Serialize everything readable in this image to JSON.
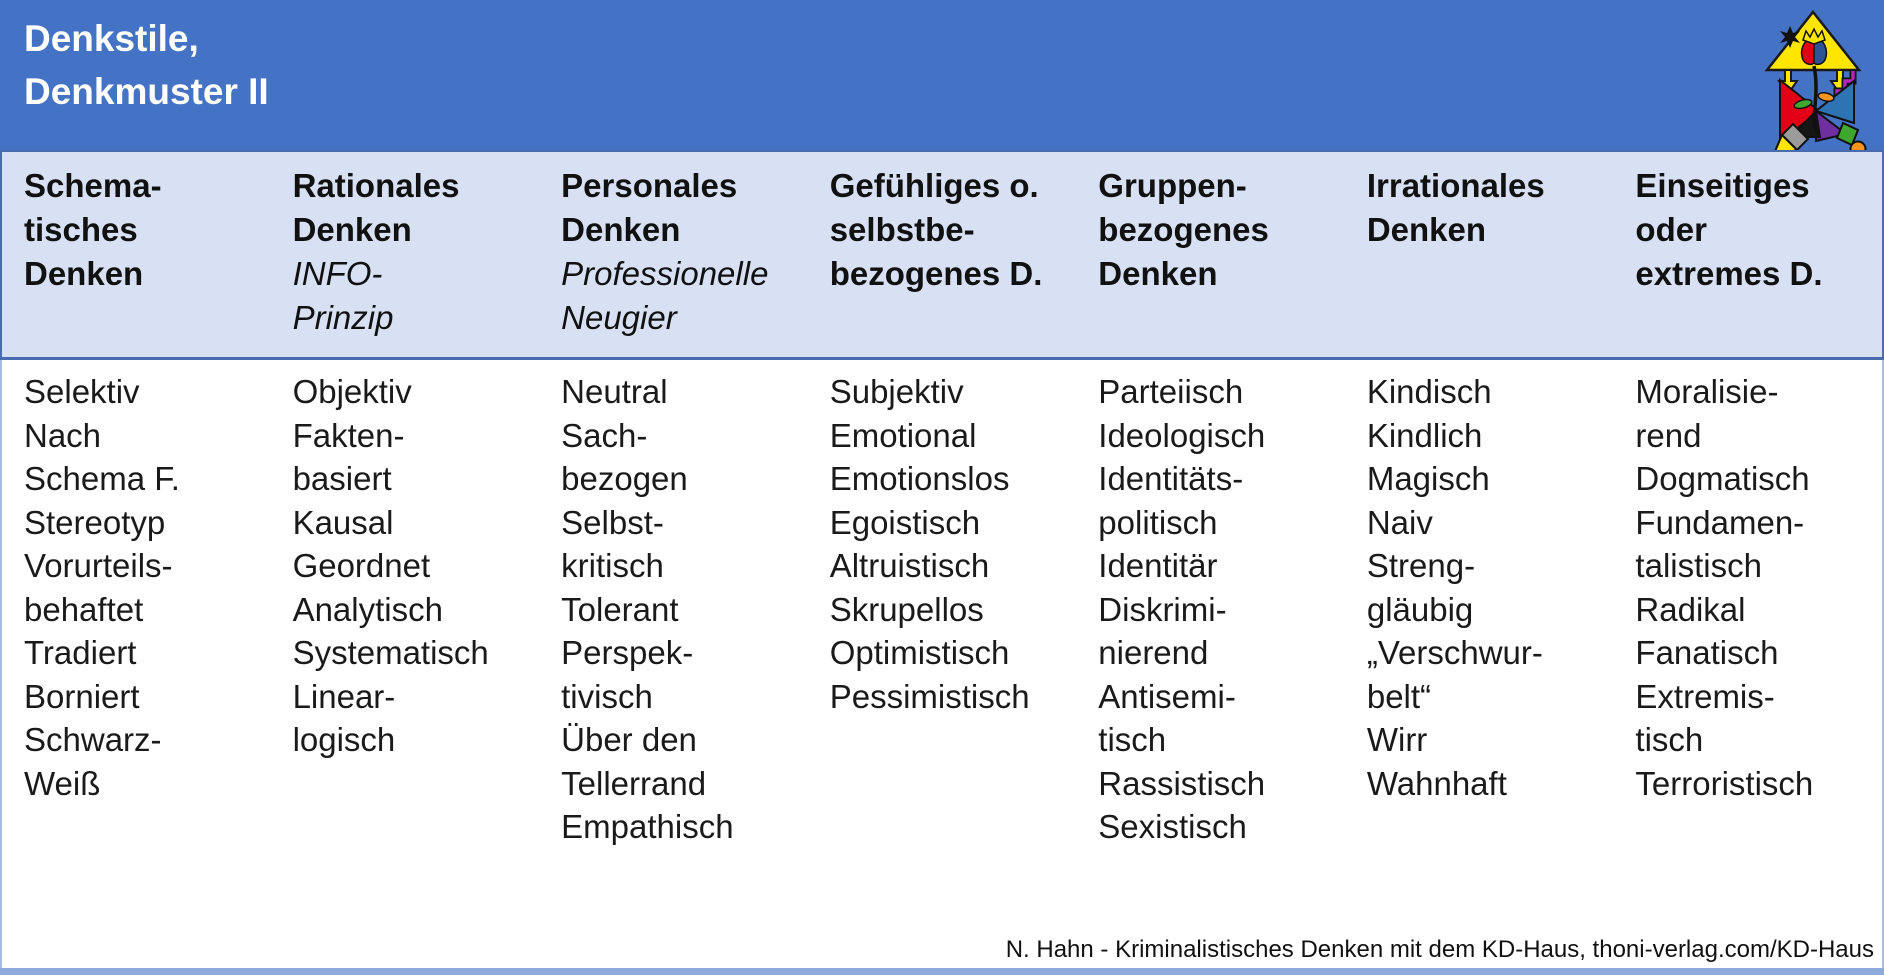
{
  "title": {
    "lines": [
      "Denkstile,",
      "Denkmuster II"
    ]
  },
  "logo": {
    "name": "kd-haus-logo"
  },
  "colors": {
    "title_bar": "#4472C4",
    "title_text": "#FFFFFF",
    "header_band": "#D8E1F3",
    "band_border": "#4A6CAE",
    "body_border": "#A9BEE4",
    "bottom_bar": "#8FAADC"
  },
  "table": {
    "columns": [
      {
        "header_lines": [
          "Schema-",
          "tisches",
          "Denken"
        ],
        "subheader_lines": [],
        "items": [
          "Selektiv",
          "Nach",
          "Schema F.",
          "Stereotyp",
          "Vorurteils-",
          "behaftet",
          "Tradiert",
          "Borniert",
          "Schwarz-",
          "Weiß"
        ]
      },
      {
        "header_lines": [
          "Rationales",
          "Denken"
        ],
        "subheader_lines": [
          "INFO-",
          "Prinzip"
        ],
        "items": [
          "Objektiv",
          "Fakten-",
          "basiert",
          "Kausal",
          "Geordnet",
          "Analytisch",
          "Systematisch",
          "Linear-",
          "logisch"
        ]
      },
      {
        "header_lines": [
          "Personales",
          "Denken"
        ],
        "subheader_lines": [
          "Professionelle",
          "Neugier"
        ],
        "items": [
          "Neutral",
          "Sach-",
          "bezogen",
          "Selbst-",
          "kritisch",
          "Tolerant",
          "Perspek-",
          "tivisch",
          "Über den",
          "Tellerrand",
          "Empathisch"
        ]
      },
      {
        "header_lines": [
          "Gefühliges o.",
          "selbstbe-",
          "bezogenes D."
        ],
        "subheader_lines": [],
        "items": [
          "Subjektiv",
          "Emotional",
          "Emotionslos",
          "Egoistisch",
          "Altruistisch",
          "Skrupellos",
          "Optimistisch",
          "Pessimistisch"
        ]
      },
      {
        "header_lines": [
          "Gruppen-",
          "bezogenes",
          "Denken"
        ],
        "subheader_lines": [],
        "items": [
          "Parteiisch",
          "Ideologisch",
          "Identitäts-",
          "politisch",
          "Identitär",
          "Diskrimi-",
          "nierend",
          "Antisemi-",
          "tisch",
          "Rassistisch",
          "Sexistisch"
        ]
      },
      {
        "header_lines": [
          "Irrationales",
          "Denken"
        ],
        "subheader_lines": [],
        "items": [
          "Kindisch",
          "Kindlich",
          "Magisch",
          "Naiv",
          "Streng-",
          "gläubig",
          "„Verschwur-",
          "belt“",
          "Wirr",
          "Wahnhaft"
        ]
      },
      {
        "header_lines": [
          "Einseitiges",
          "oder",
          "extremes D."
        ],
        "subheader_lines": [],
        "items": [
          "Moralisie-",
          "rend",
          "Dogmatisch",
          "Fundamen-",
          "talistisch",
          "Radikal",
          "Fanatisch",
          "Extremis-",
          "tisch",
          "Terroristisch"
        ]
      }
    ]
  },
  "footer": {
    "text": "N. Hahn - Kriminalistisches Denken mit dem KD-Haus, thoni-verlag.com/KD-Haus"
  }
}
